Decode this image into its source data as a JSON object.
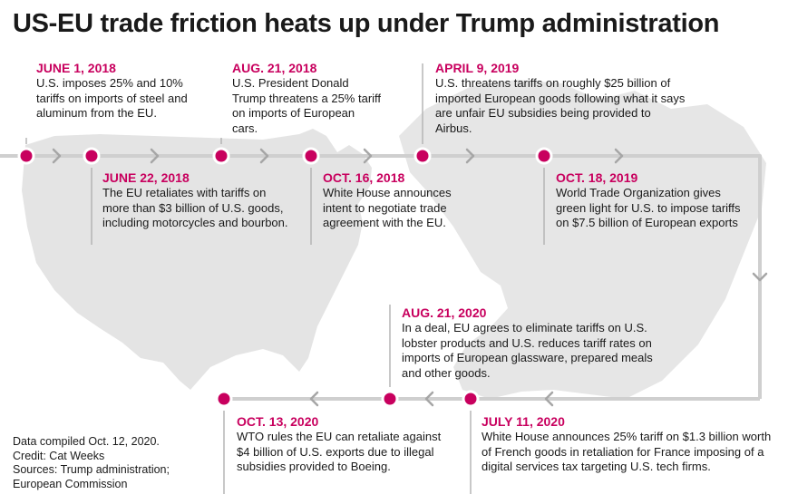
{
  "title": "US-EU trade friction heats up under Trump administration",
  "colors": {
    "accent": "#c8005e",
    "track": "#cfcfcf",
    "connector": "#b5b5b5",
    "map": "#e4e4e4",
    "text": "#1a1a1a"
  },
  "events": [
    {
      "date": "JUNE 1, 2018",
      "text": "U.S. imposes 25% and 10% tariffs on imports of steel and aluminum from the EU."
    },
    {
      "date": "JUNE 22, 2018",
      "text": "The EU retaliates with tariffs on more than $3 billion of U.S. goods, including motorcycles and bourbon."
    },
    {
      "date": "AUG. 21, 2018",
      "text": "U.S. President Donald Trump threatens a 25% tariff on imports of European cars."
    },
    {
      "date": "OCT. 16, 2018",
      "text": "White House announces intent to negotiate trade agreement with the EU."
    },
    {
      "date": "APRIL 9, 2019",
      "text": "U.S. threatens tariffs on roughly $25 billion of imported European goods following what it says are unfair EU subsidies being provided to Airbus."
    },
    {
      "date": "OCT. 18, 2019",
      "text": "World Trade Organization gives green light for U.S. to impose tariffs on $7.5 billion of European exports"
    },
    {
      "date": "JULY 11, 2020",
      "text": "White House announces 25% tariff on $1.3 billion worth of French goods in retaliation for France imposing of a digital services tax targeting U.S. tech firms."
    },
    {
      "date": "AUG. 21, 2020",
      "text": "In a deal, EU agrees to eliminate tariffs on U.S. lobster products and U.S. reduces tariff rates on imports of European glassware, prepared meals and other goods."
    },
    {
      "date": "OCT. 13, 2020",
      "text": "WTO rules the EU can retaliate against $4 billion of U.S. exports due to illegal subsidies provided to Boeing."
    }
  ],
  "footer": {
    "compiled": "Data compiled Oct. 12, 2020.",
    "credit": "Credit: Cat Weeks",
    "sources_1": "Sources: Trump administration;",
    "sources_2": "European Commission"
  }
}
